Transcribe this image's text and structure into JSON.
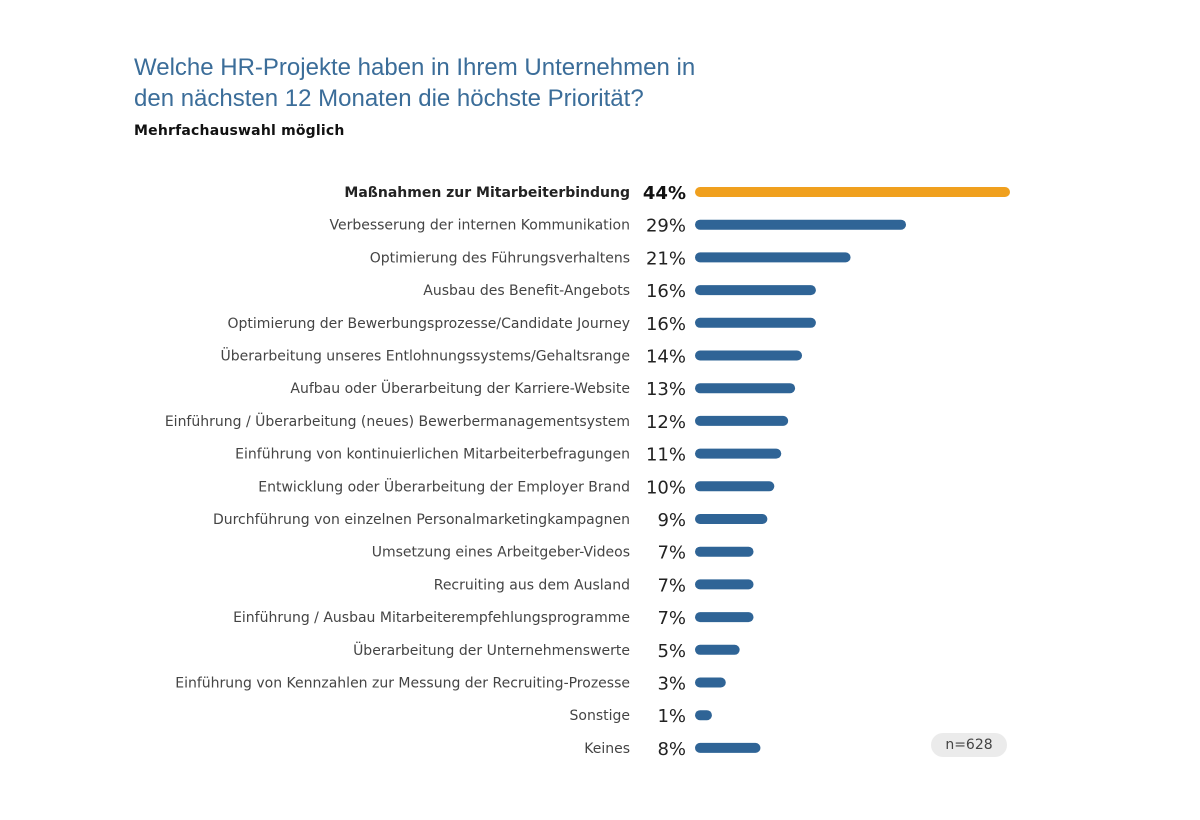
{
  "title_lines": [
    "Welche HR-Projekte haben in Ihrem Unternehmen in",
    "den nächsten 12 Monaten die höchste Priorität?"
  ],
  "subtitle": "Mehrfachauswahl möglich",
  "sample_size": "n=628",
  "colors": {
    "title": "#3b6d99",
    "bar": "#2f6496",
    "highlight_bar": "#f0a01e",
    "badge_bg": "#ebebeb"
  },
  "chart_data": {
    "type": "bar",
    "orientation": "horizontal",
    "title": "Welche HR-Projekte haben in Ihrem Unternehmen in den nächsten 12 Monaten die höchste Priorität?",
    "subtitle": "Mehrfachauswahl möglich",
    "xlim": [
      0,
      44
    ],
    "grid": false,
    "highlight_index": 0,
    "categories": [
      "Maßnahmen zur Mitarbeiterbindung",
      "Verbesserung der internen Kommunikation",
      "Optimierung des Führungsverhaltens",
      "Ausbau des Benefit-Angebots",
      "Optimierung der Bewerbungsprozesse/Candidate Journey",
      "Überarbeitung unseres Entlohnungssystems/Gehaltsrange",
      "Aufbau oder Überarbeitung der Karriere-Website",
      "Einführung / Überarbeitung (neues) Bewerbermanagementsystem",
      "Einführung von kontinuierlichen Mitarbeiterbefragungen",
      "Entwicklung oder Überarbeitung der Employer Brand",
      "Durchführung von einzelnen Personalmarketingkampagnen",
      "Umsetzung eines Arbeitgeber-Videos",
      "Recruiting aus dem Ausland",
      "Einführung / Ausbau Mitarbeiterempfehlungsprogramme",
      "Überarbeitung der Unternehmenswerte",
      "Einführung von Kennzahlen zur Messung der Recruiting-Prozesse",
      "Sonstige",
      "Keines"
    ],
    "values": [
      44,
      29,
      21,
      16,
      16,
      14,
      13,
      12,
      11,
      10,
      9,
      7,
      7,
      7,
      5,
      3,
      1,
      8
    ],
    "value_labels": [
      "44%",
      "29%",
      "21%",
      "16%",
      "16%",
      "14%",
      "13%",
      "12%",
      "11%",
      "10%",
      "9%",
      "7%",
      "7%",
      "7%",
      "5%",
      "3%",
      "1%",
      "8%"
    ]
  }
}
